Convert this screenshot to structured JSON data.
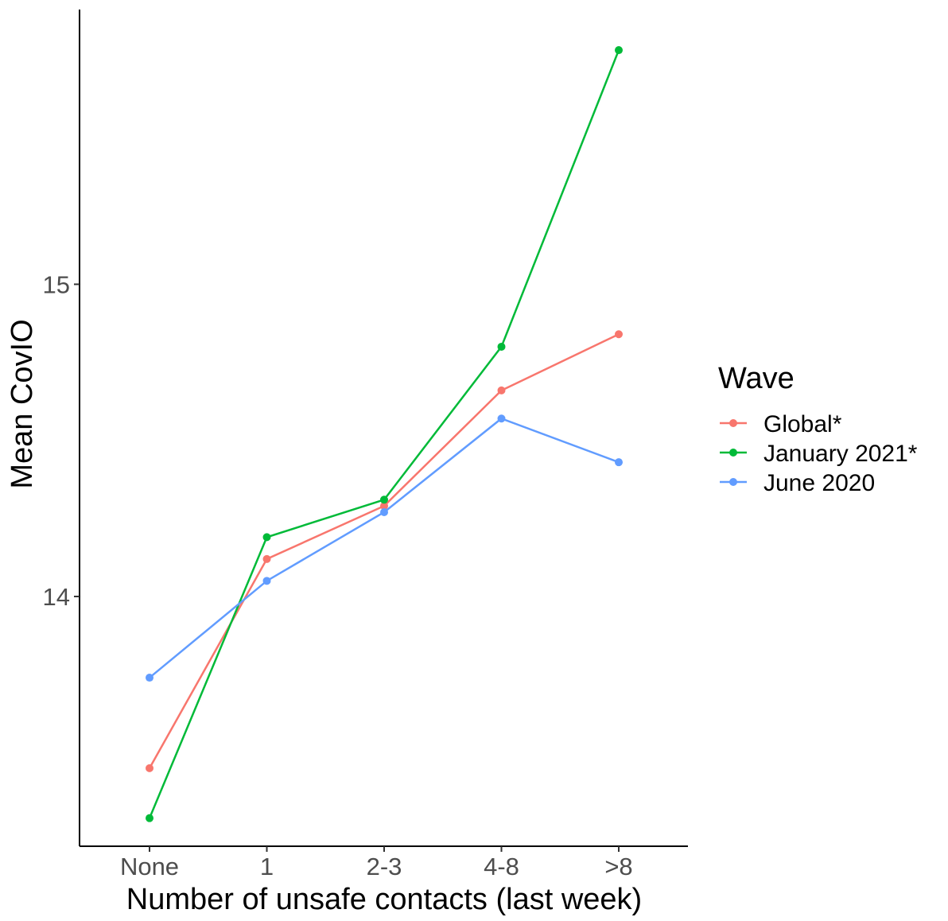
{
  "chart_data": {
    "type": "line",
    "xlabel": "Number of unsafe contacts (last week)",
    "ylabel": "Mean CovIO",
    "categories": [
      "None",
      "1",
      "2-3",
      "4-8",
      ">8"
    ],
    "y_ticks": [
      14,
      15
    ],
    "ylim": [
      13.2,
      15.88
    ],
    "grid": false,
    "legend": {
      "title": "Wave",
      "position": "right"
    },
    "series": [
      {
        "name": "Global*",
        "color": "#F8766D",
        "values": [
          13.45,
          14.12,
          14.29,
          14.66,
          14.84
        ]
      },
      {
        "name": "January 2021*",
        "color": "#00BA38",
        "values": [
          13.29,
          14.19,
          14.31,
          14.8,
          15.75
        ]
      },
      {
        "name": "June 2020",
        "color": "#619CFF",
        "values": [
          13.74,
          14.05,
          14.27,
          14.57,
          14.43
        ]
      }
    ]
  }
}
